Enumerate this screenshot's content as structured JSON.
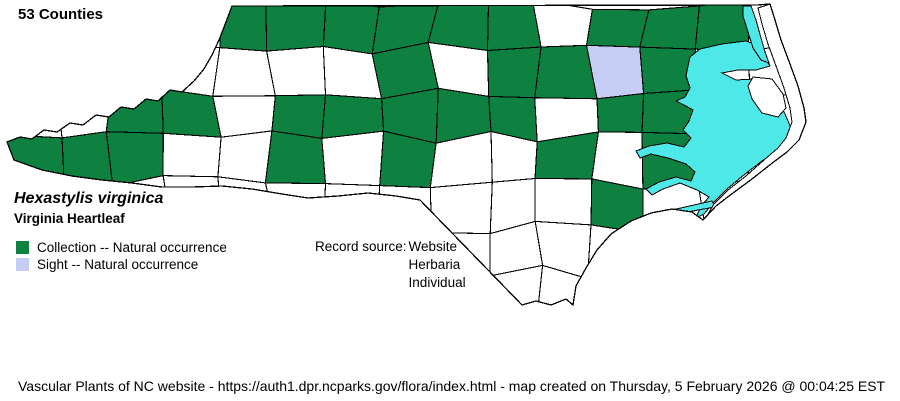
{
  "title": "53 Counties",
  "species": {
    "scientific_name": "Hexastylis virginica",
    "common_name": "Virginia Heartleaf"
  },
  "legend": [
    {
      "key": "collection",
      "label": "Collection -- Natural occurrence",
      "color_ref": "green"
    },
    {
      "key": "sight",
      "label": "Sight -- Natural occurrence",
      "color_ref": "sight"
    }
  ],
  "record_source": {
    "label": "Record source:",
    "values": [
      "Website",
      "Herbaria",
      "Individual"
    ]
  },
  "footer": "Vascular Plants of NC website - https://auth1.dpr.ncparks.gov/flora/index.html - map created on Thursday, 5 February 2026 @ 00:04:25 EST",
  "colors": {
    "green": "#0E8040",
    "sight": "#C5CDF5",
    "water": "#4FE8E8",
    "county_fill": "#FFFFFF",
    "border": "#000000"
  },
  "map_grid": {
    "cols": 15,
    "rows": 7,
    "legend_tokens": {
      "G": "green",
      "S": "sight",
      "W": "county_fill"
    },
    "cell_tokens": [
      "WWWWGGGGGGWGGGW",
      "WWGWWWWGWGGSGWW",
      "WWGGWGGGGGWGGWW",
      "GGGWWGWGWWGWGWW",
      "GGWWWWWWWWWGWWW",
      "WWWWWWWWWWWWWWW",
      "WWWWWWWWWWWWWWW"
    ]
  }
}
